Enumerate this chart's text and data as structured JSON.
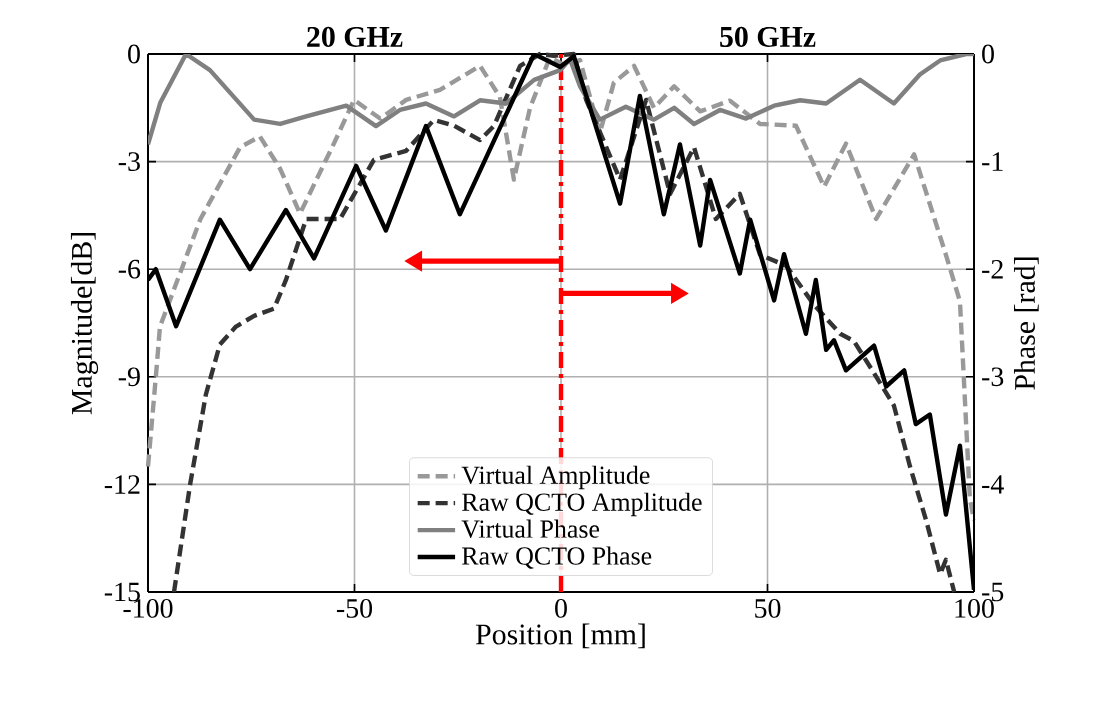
{
  "chart_data": {
    "type": "line",
    "xlabel": "Position [mm]",
    "ylabel": "Magnitude[dB]",
    "y2label": "Phase [rad]",
    "annotations": [
      "20 GHz",
      "50 GHz"
    ],
    "xlim": [
      -100,
      100
    ],
    "xticks": [
      -100,
      -50,
      0,
      50,
      100
    ],
    "ylim": [
      -15,
      0
    ],
    "yticks": [
      -15,
      -12,
      -9,
      -6,
      -3,
      0
    ],
    "y2lim": [
      -5,
      0
    ],
    "y2ticks": [
      -5,
      -4,
      -3,
      -2,
      -1,
      0
    ],
    "grid": true,
    "legend": "bottom",
    "marker": "none",
    "ref_lines": [
      {
        "axis": "x",
        "value": 0,
        "color": "#ff0000",
        "line_style": "dashed"
      }
    ],
    "series": [
      {
        "name": "Virtual Amplitude",
        "color": "#999999",
        "line_style": "dashed",
        "x": [
          -100,
          -98.1,
          -97.1,
          -87.3,
          -77.7,
          -72.9,
          -68,
          -63.2,
          -55,
          -50.1,
          -43.8,
          -37.5,
          -29.3,
          -19.6,
          -14.8,
          -11.4,
          -7.5,
          -2.7,
          0.7,
          4.6,
          9.4,
          12.8,
          17.7,
          22.5,
          27.4,
          33.7,
          40.9,
          48.2,
          56.9,
          63.7,
          69,
          76.3,
          85.5,
          93.2,
          96.6,
          99,
          100
        ],
        "values": [
          -11.5,
          -9,
          -7.6,
          -4.6,
          -2.6,
          -2.3,
          -3.2,
          -4.45,
          -2.5,
          -1.28,
          -1.8,
          -1.28,
          -1.0,
          -0.33,
          -1.2,
          -3.5,
          -1.5,
          -0.1,
          -0.3,
          -0.17,
          -2.2,
          -0.8,
          -0.33,
          -1.5,
          -0.9,
          -1.6,
          -1.3,
          -1.95,
          -2.0,
          -3.7,
          -2.5,
          -4.6,
          -2.8,
          -5.6,
          -6.9,
          -12.4,
          -13
        ]
      },
      {
        "name": "Raw QCTO Amplitude",
        "color": "#333333",
        "line_style": "dashed",
        "x": [
          -93.7,
          -89.8,
          -86,
          -82.6,
          -78.7,
          -74.3,
          -69.5,
          -66.6,
          -61.7,
          -53.5,
          -45.3,
          -37.5,
          -30.8,
          -25.9,
          -19.6,
          -16.2,
          -9.9,
          -5.1,
          -1.7,
          3.1,
          6.1,
          14.3,
          20.6,
          26.4,
          32.2,
          37.5,
          43.3,
          48.2,
          54.5,
          61.3,
          67.6,
          70.9,
          75.8,
          80.6,
          84.5,
          88.4,
          91.8,
          93.2,
          95.2
        ],
        "values": [
          -15,
          -12,
          -9.5,
          -8.1,
          -7.6,
          -7.3,
          -7.1,
          -6.3,
          -4.6,
          -4.6,
          -2.95,
          -2.7,
          -1.84,
          -2.0,
          -2.4,
          -2.0,
          -0.33,
          0,
          -0.05,
          0,
          -1.28,
          -3.5,
          -1.28,
          -3.9,
          -2.6,
          -4.6,
          -3.9,
          -5.6,
          -5.9,
          -7,
          -7.8,
          -8,
          -8.9,
          -9.8,
          -11.5,
          -13,
          -14.5,
          -14.1,
          -15
        ]
      },
      {
        "name": "Virtual Phase",
        "color": "#808080",
        "line_style": "solid",
        "axis": "y2",
        "x": [
          -100,
          -97,
          -90.8,
          -85,
          -74.3,
          -68,
          -61.7,
          -52,
          -44.8,
          -39,
          -32.7,
          -25.9,
          -19.6,
          -13.3,
          -6.5,
          -0.2,
          2.2,
          4.6,
          9.4,
          15.7,
          22.5,
          27.4,
          32.2,
          38.5,
          44.8,
          51.6,
          57.9,
          64.2,
          72.4,
          80.6,
          86.9,
          91.8,
          98.1,
          100
        ],
        "values": [
          -0.84,
          -0.45,
          0,
          -0.15,
          -0.61,
          -0.65,
          -0.58,
          -0.48,
          -0.67,
          -0.52,
          -0.46,
          -0.58,
          -0.43,
          -0.46,
          -0.24,
          -0.15,
          -0.05,
          -0.3,
          -0.61,
          -0.49,
          -0.61,
          -0.5,
          -0.65,
          -0.52,
          -0.6,
          -0.48,
          -0.43,
          -0.46,
          -0.24,
          -0.46,
          -0.19,
          -0.06,
          0,
          0
        ]
      },
      {
        "name": "Raw QCTO Phase",
        "color": "#000000",
        "line_style": "solid",
        "axis": "y2",
        "x": [
          -100,
          -98.1,
          -93.2,
          -82.6,
          -75.3,
          -66.6,
          -59.8,
          -49.6,
          -42.4,
          -32.7,
          -24.5,
          -6.5,
          -0.2,
          3.1,
          14.3,
          19.1,
          24.9,
          28.8,
          33.7,
          36.1,
          43.3,
          45.8,
          51.6,
          54,
          59.3,
          61.7,
          64.2,
          66.1,
          69,
          75.8,
          78.7,
          83.1,
          85.9,
          89.3,
          93.2,
          96.6,
          100
        ],
        "values": [
          -2.1,
          -2.0,
          -2.53,
          -1.54,
          -2.0,
          -1.45,
          -1.9,
          -1.04,
          -1.64,
          -0.67,
          -1.49,
          0,
          -0.12,
          -0.02,
          -1.39,
          -0.39,
          -1.49,
          -0.84,
          -1.78,
          -1.17,
          -2.04,
          -1.54,
          -2.29,
          -1.86,
          -2.6,
          -2.1,
          -2.75,
          -2.66,
          -2.94,
          -2.71,
          -3.09,
          -2.94,
          -3.44,
          -3.35,
          -4.28,
          -3.64,
          -4.98
        ]
      }
    ]
  }
}
